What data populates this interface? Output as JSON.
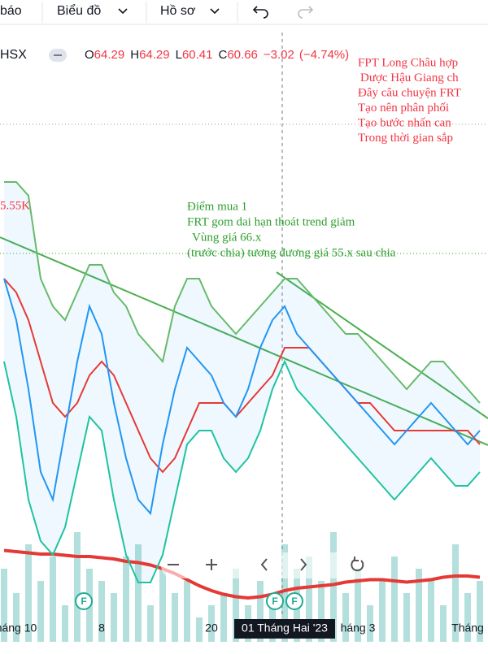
{
  "toolbar": {
    "items": [
      "báo",
      "Biểu đồ",
      "Hồ sơ"
    ]
  },
  "legend": {
    "symbol": "HSX",
    "items": [
      {
        "key": "O",
        "value": "64.29"
      },
      {
        "key": "H",
        "value": "64.29"
      },
      {
        "key": "L",
        "value": "60.41"
      },
      {
        "key": "C",
        "value": "60.66"
      }
    ],
    "change": "−3.02",
    "change_pct": "(−4.74%)"
  },
  "annotations": {
    "red": [
      "FPT Long Châu hợp",
      "Dược Hậu Giang ch",
      "Đây câu chuyện FRT",
      "Tạo nên phân phối",
      "Tạo bước nhấn can",
      "Trong thời gian sắp"
    ],
    "green": [
      "Điểm mua 1",
      "FRT gom dai hạn thoát trend giảm",
      "Vùng giá 66.x",
      "(trước chia) tương đương giá 55.x sau chia"
    ],
    "volume_label": "5.55K"
  },
  "markers": [
    "F",
    "F",
    "F"
  ],
  "chart_data": {
    "type": "line",
    "categories": [
      null,
      "háng 10",
      null,
      null,
      null,
      null,
      null,
      null,
      "8",
      null,
      null,
      null,
      null,
      null,
      null,
      null,
      null,
      "20",
      null,
      null,
      null,
      null,
      null,
      "01 Tháng Hai '23",
      null,
      null,
      null,
      null,
      null,
      "háng 3",
      null,
      null,
      null,
      null,
      null,
      null,
      null,
      null,
      "Tháng",
      null
    ],
    "crosshair_index": 23,
    "ylim": [
      45,
      75
    ],
    "series": [
      {
        "color": "#66bb6a",
        "values": [
          73,
          73,
          72,
          66,
          64,
          63,
          65,
          67,
          67,
          65,
          64,
          62,
          61,
          60,
          64,
          66,
          66,
          64,
          63,
          62,
          63,
          64,
          65,
          66,
          66,
          65,
          64,
          63,
          62,
          62,
          61,
          60,
          59,
          58,
          59,
          60,
          60,
          59,
          58,
          57
        ]
      },
      {
        "color": "#1fc3a0",
        "values": [
          60,
          56,
          50,
          47,
          46,
          48,
          52,
          56,
          55,
          50,
          46,
          44,
          44,
          46,
          50,
          54,
          55,
          55,
          53,
          52,
          53,
          55,
          58,
          60,
          58,
          57,
          56,
          55,
          54,
          53,
          52,
          51,
          50,
          51,
          52,
          53,
          52,
          51,
          51,
          52
        ]
      },
      {
        "color": "#e53935",
        "values": [
          66,
          65,
          63,
          60,
          57,
          56,
          57,
          59,
          60,
          59,
          57,
          55,
          53,
          52,
          53,
          55,
          57,
          57,
          57,
          56,
          57,
          58,
          59,
          61,
          61,
          61,
          60,
          59,
          58,
          57,
          57,
          56,
          55,
          55,
          55,
          55,
          55,
          55,
          55,
          54
        ]
      },
      {
        "color": "#2196f3",
        "values": [
          66,
          63,
          58,
          52,
          50,
          55,
          60,
          64,
          62,
          57,
          53,
          50,
          49,
          54,
          58,
          61,
          60,
          59,
          57,
          56,
          58,
          61,
          63,
          64,
          62,
          61,
          60,
          59,
          58,
          57,
          56,
          55,
          54,
          55,
          56,
          57,
          56,
          55,
          54,
          55
        ]
      }
    ],
    "volume": {
      "ylim": [
        0,
        12
      ],
      "color": "rgba(38,166,154,0.35)",
      "values": [
        6,
        4,
        8,
        5,
        7,
        3,
        9,
        6,
        5,
        4,
        7,
        8,
        3,
        6,
        4,
        5,
        2,
        3,
        4,
        6,
        3,
        5,
        4,
        8,
        6,
        7,
        5,
        9,
        4,
        6,
        3,
        5,
        7,
        4,
        6,
        5,
        3,
        8,
        4,
        5
      ],
      "ma_color": "#e53935",
      "ma": [
        7.5,
        7.4,
        7.3,
        7.2,
        7.2,
        7.1,
        7,
        7,
        6.9,
        6.8,
        6.6,
        6.5,
        6.3,
        6,
        5.6,
        5.1,
        4.6,
        4.2,
        3.9,
        3.7,
        3.6,
        3.7,
        3.9,
        4.2,
        4.4,
        4.5,
        4.6,
        4.7,
        4.9,
        5,
        5.1,
        5.1,
        5,
        4.9,
        5,
        5.1,
        5.3,
        5.4,
        5.4,
        5.3
      ]
    }
  }
}
